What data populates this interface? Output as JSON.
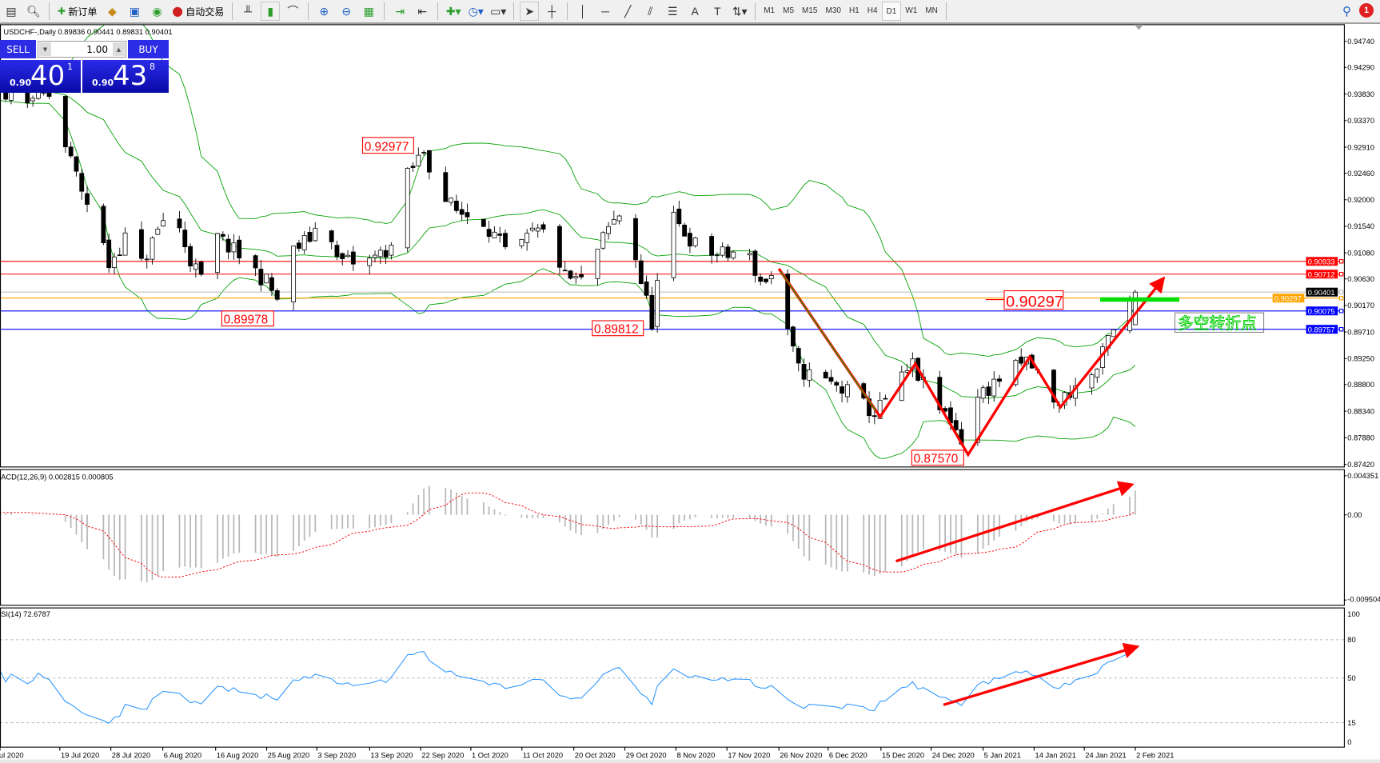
{
  "toolbar": {
    "new_order": "新订单",
    "auto_trading": "自动交易",
    "periods": [
      "M1",
      "M5",
      "M15",
      "M30",
      "H1",
      "H4",
      "D1",
      "W1",
      "MN"
    ],
    "active_period": "D1",
    "notification_count": "1"
  },
  "chart": {
    "header": "USDCHF-,Daily  0.89836 0.90441 0.89831 0.90401",
    "macd_label": "ACD(12,26,9) 0.002815 0.000805",
    "rsi_label": "SI(14) 72.6787",
    "annotation_text": "多空转折点"
  },
  "trade_panel": {
    "sell": "SELL",
    "buy": "BUY",
    "volume": "1.00",
    "bid_prefix": "0.90",
    "bid_big": "40",
    "bid_small": "1",
    "ask_prefix": "0.90",
    "ask_big": "43",
    "ask_small": "8"
  },
  "chart_data": {
    "type": "candlestick",
    "symbol": "USDCHF-",
    "timeframe": "Daily",
    "last_bar": {
      "open": 0.89836,
      "high": 0.90441,
      "low": 0.89831,
      "close": 0.90401
    },
    "price_axis": {
      "range": [
        0.8742,
        0.9474
      ],
      "ticks": [
        "0.94740",
        "0.94290",
        "0.93830",
        "0.93370",
        "0.92910",
        "0.92460",
        "0.92000",
        "0.91540",
        "0.91080",
        "0.90630",
        "0.90170",
        "0.89710",
        "0.89250",
        "0.88800",
        "0.88340",
        "0.87880",
        "0.87420"
      ]
    },
    "date_axis": [
      "ul 2020",
      "19 Jul 2020",
      "28 Jul 2020",
      "6 Aug 2020",
      "16 Aug 2020",
      "25 Aug 2020",
      "3 Sep 2020",
      "13 Sep 2020",
      "22 Sep 2020",
      "1 Oct 2020",
      "11 Oct 2020",
      "20 Oct 2020",
      "29 Oct 2020",
      "8 Nov 2020",
      "17 Nov 2020",
      "26 Nov 2020",
      "6 Dec 2020",
      "15 Dec 2020",
      "24 Dec 2020",
      "5 Jan 2021",
      "14 Jan 2021",
      "24 Jan 2021",
      "2 Feb 2021"
    ],
    "close_waypoints": [
      [
        "2020-07-09",
        0.9386
      ],
      [
        "2020-07-18",
        0.9378
      ],
      [
        "2020-07-19",
        0.9317
      ],
      [
        "2020-07-22",
        0.9241
      ],
      [
        "2020-07-26",
        0.9149
      ],
      [
        "2020-07-28",
        0.9088
      ],
      [
        "2020-07-31",
        0.9134
      ],
      [
        "2020-08-03",
        0.9088
      ],
      [
        "2020-08-07",
        0.9165
      ],
      [
        "2020-08-10",
        0.9149
      ],
      [
        "2020-08-12",
        0.9096
      ],
      [
        "2020-08-16",
        0.9027
      ],
      [
        "2020-08-17",
        0.9134
      ],
      [
        "2020-08-21",
        0.9103
      ],
      [
        "2020-08-26",
        0.9058
      ],
      [
        "2020-08-29",
        0.9012
      ],
      [
        "2020-08-31",
        0.9111
      ],
      [
        "2020-09-03",
        0.9134
      ],
      [
        "2020-09-06",
        0.918
      ],
      [
        "2020-09-08",
        0.9096
      ],
      [
        "2020-09-13",
        0.9088
      ],
      [
        "2020-09-18",
        0.9119
      ],
      [
        "2020-09-21",
        0.9241
      ],
      [
        "2020-09-24",
        0.9286
      ],
      [
        "2020-09-27",
        0.921
      ],
      [
        "2020-09-30",
        0.918
      ],
      [
        "2020-10-05",
        0.9165
      ],
      [
        "2020-10-10",
        0.9096
      ],
      [
        "2020-10-14",
        0.9142
      ],
      [
        "2020-10-17",
        0.9142
      ],
      [
        "2020-10-20",
        0.9065
      ],
      [
        "2020-10-23",
        0.9058
      ],
      [
        "2020-10-28",
        0.9149
      ],
      [
        "2020-10-31",
        0.9187
      ],
      [
        "2020-11-03",
        0.9058
      ],
      [
        "2020-11-05",
        0.8989
      ],
      [
        "2020-11-07",
        0.9119
      ],
      [
        "2020-11-09",
        0.9165
      ],
      [
        "2020-11-14",
        0.9111
      ],
      [
        "2020-11-19",
        0.9103
      ],
      [
        "2020-11-22",
        0.9119
      ],
      [
        "2020-11-25",
        0.9058
      ],
      [
        "2020-11-28",
        0.9073
      ],
      [
        "2020-11-30",
        0.8966
      ],
      [
        "2020-12-02",
        0.8905
      ],
      [
        "2020-12-06",
        0.889
      ],
      [
        "2020-12-11",
        0.8867
      ],
      [
        "2020-12-16",
        0.8829
      ],
      [
        "2020-12-23",
        0.8913
      ],
      [
        "2020-12-27",
        0.8844
      ],
      [
        "2020-12-30",
        0.8821
      ],
      [
        "2021-01-02",
        0.8768
      ],
      [
        "2021-01-04",
        0.8859
      ],
      [
        "2021-01-08",
        0.889
      ],
      [
        "2021-01-13",
        0.892
      ],
      [
        "2021-01-16",
        0.889
      ],
      [
        "2021-01-18",
        0.8844
      ],
      [
        "2021-01-22",
        0.8875
      ],
      [
        "2021-01-26",
        0.8905
      ],
      [
        "2021-01-28",
        0.8958
      ],
      [
        "2021-01-30",
        0.8981
      ],
      [
        "2021-02-02",
        0.90401
      ]
    ],
    "horizontal_lines": [
      {
        "price": 0.90933,
        "color": "#ff0000",
        "label": "0.90933"
      },
      {
        "price": 0.90712,
        "color": "#ff0000",
        "label": "0.90712"
      },
      {
        "price": 0.90401,
        "color": "#c0c0c0",
        "label": "0.90401",
        "label_bg": "#000000"
      },
      {
        "price": 0.90297,
        "color": "#ffa500",
        "label": "0.90297"
      },
      {
        "price": 0.90075,
        "color": "#0000ff",
        "label": "0.90075"
      },
      {
        "price": 0.89757,
        "color": "#0000ff",
        "label": "0.89757"
      }
    ],
    "price_labels": [
      "0.92977",
      "0.89978",
      "0.89812",
      "0.87570",
      "0.90297"
    ],
    "indicators": {
      "bollinger": {
        "period": 20,
        "deviation": 2,
        "color": "#00a000"
      },
      "macd": {
        "fast": 12,
        "slow": 26,
        "signal": 9,
        "value": 0.002815,
        "signal_value": 0.000805,
        "axis": [
          "0.004351",
          "0.00",
          "-0.009504"
        ],
        "range": [
          -0.009504,
          0.004351
        ]
      },
      "rsi": {
        "period": 14,
        "value": 72.6787,
        "axis": [
          "100",
          "80",
          "50",
          "15",
          "0"
        ],
        "levels": [
          80,
          50,
          15
        ],
        "color": "#1e90ff"
      }
    }
  }
}
